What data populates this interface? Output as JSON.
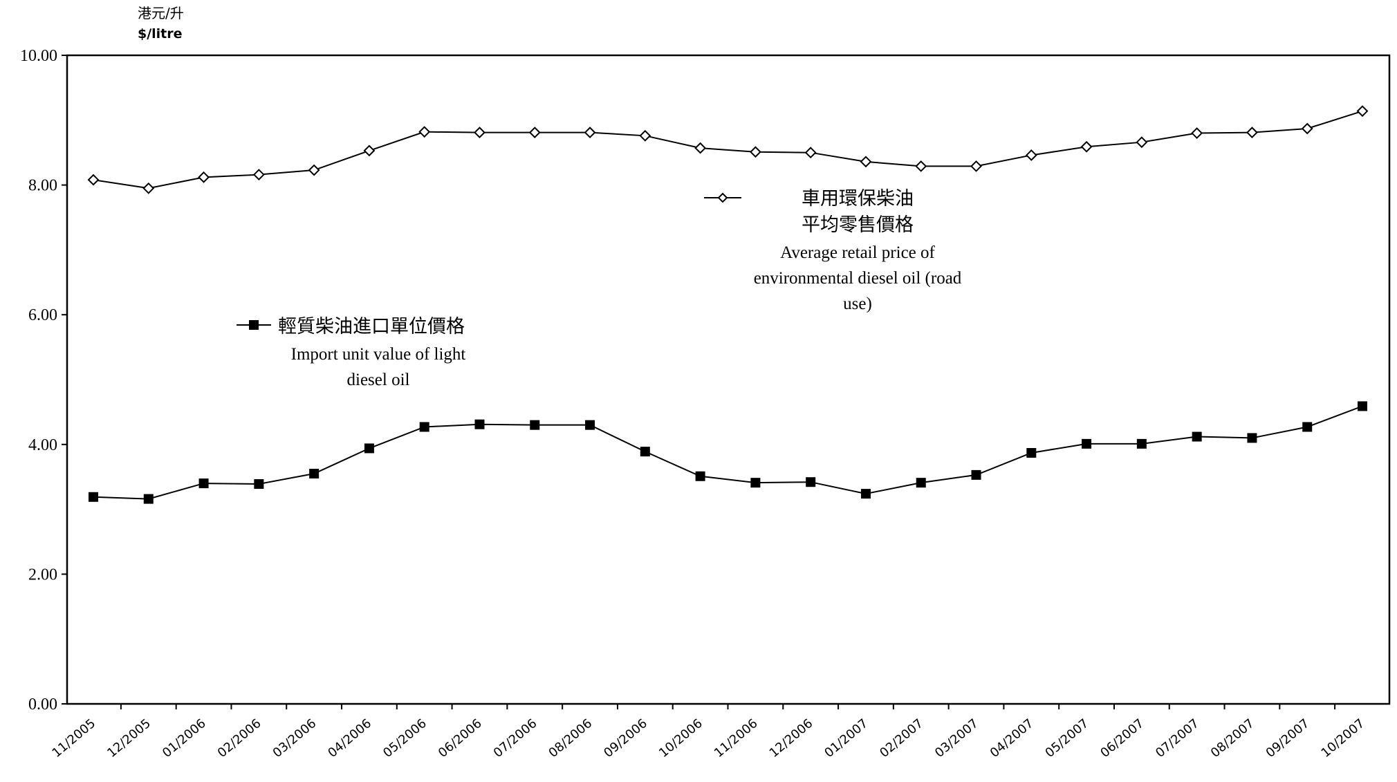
{
  "chart_data": {
    "type": "line",
    "y_unit_label_zh": "港元/升",
    "y_unit_label_en": "$/litre",
    "categories": [
      "11/2005",
      "12/2005",
      "01/2006",
      "02/2006",
      "03/2006",
      "04/2006",
      "05/2006",
      "06/2006",
      "07/2006",
      "08/2006",
      "09/2006",
      "10/2006",
      "11/2006",
      "12/2006",
      "01/2007",
      "02/2007",
      "03/2007",
      "04/2007",
      "05/2007",
      "06/2007",
      "07/2007",
      "08/2007",
      "09/2007",
      "10/2007"
    ],
    "ylim": [
      0,
      10
    ],
    "yticks": [
      "0.00",
      "2.00",
      "4.00",
      "6.00",
      "8.00",
      "10.00"
    ],
    "series": [
      {
        "id": "retail",
        "name_zh_line1": "車用環保柴油",
        "name_zh_line2": "平均零售價格",
        "name_en_line1": "Average retail price of",
        "name_en_line2": "environmental diesel oil (road",
        "name_en_line3": "use)",
        "marker": "diamond-open",
        "values": [
          8.08,
          7.95,
          8.12,
          8.16,
          8.23,
          8.53,
          8.82,
          8.81,
          8.81,
          8.81,
          8.76,
          8.57,
          8.51,
          8.5,
          8.36,
          8.29,
          8.29,
          8.46,
          8.59,
          8.66,
          8.8,
          8.81,
          8.87,
          9.14
        ]
      },
      {
        "id": "import",
        "name_zh_line1": "輕質柴油進口單位價格",
        "name_en_line1": "Import unit value of light",
        "name_en_line2": "diesel oil",
        "marker": "square-filled",
        "values": [
          3.19,
          3.16,
          3.4,
          3.39,
          3.55,
          3.94,
          4.27,
          4.31,
          4.3,
          4.3,
          3.89,
          3.51,
          3.41,
          3.42,
          3.24,
          3.41,
          3.53,
          3.87,
          4.01,
          4.01,
          4.12,
          4.1,
          4.27,
          4.59
        ]
      }
    ],
    "legend_placement": "inside-plot",
    "grid": false
  }
}
